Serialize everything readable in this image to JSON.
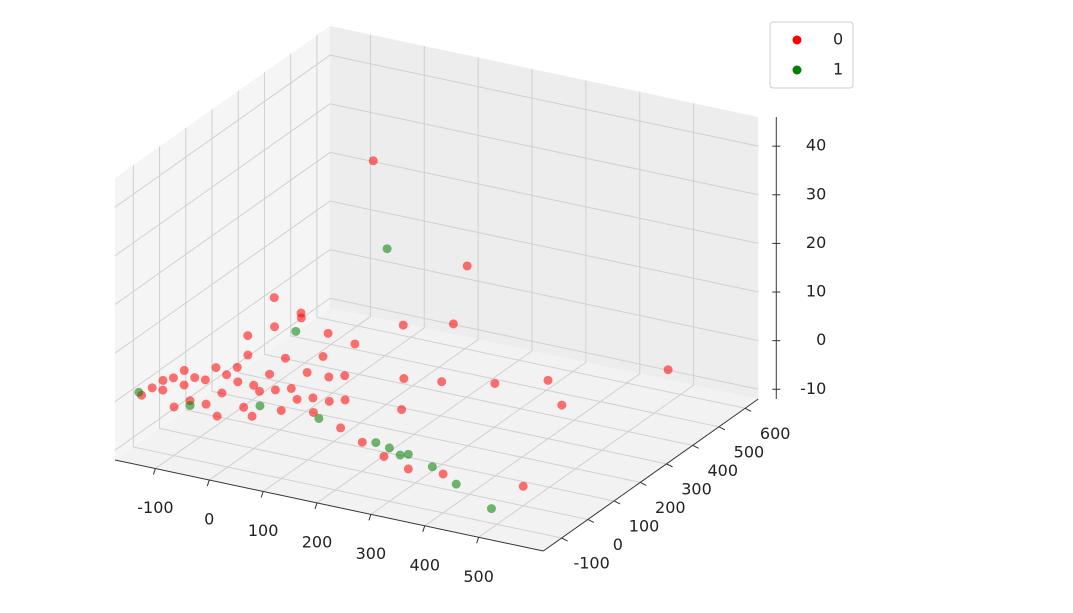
{
  "chart_data": {
    "type": "scatter3d",
    "series": [
      {
        "name": "0",
        "color": "#ff0000",
        "x": [
          -150,
          -140,
          -130,
          -120,
          -110,
          -100,
          -90,
          -80,
          -70,
          -60,
          -50,
          -40,
          -30,
          -20,
          -10,
          0,
          10,
          20,
          30,
          40,
          50,
          60,
          70,
          80,
          90,
          100,
          110,
          120,
          130,
          140,
          150,
          -80,
          -60,
          0,
          60,
          -120,
          -100,
          -60,
          -20,
          20,
          60,
          100,
          -40,
          0,
          200,
          250,
          300,
          350,
          250,
          300,
          350,
          400,
          450,
          500,
          550,
          250,
          100,
          200,
          400,
          180,
          220
        ],
        "y": [
          -120,
          -100,
          -80,
          -60,
          -40,
          -20,
          0,
          20,
          40,
          60,
          80,
          -100,
          -60,
          -20,
          20,
          60,
          100,
          -80,
          -40,
          0,
          40,
          80,
          120,
          -60,
          -20,
          20,
          60,
          100,
          -40,
          0,
          40,
          -140,
          -120,
          -140,
          -130,
          -100,
          -60,
          100,
          120,
          140,
          160,
          180,
          160,
          180,
          -80,
          -100,
          -120,
          -130,
          50,
          100,
          200,
          300,
          250,
          0,
          450,
          300,
          250,
          350,
          -100,
          200,
          120
        ],
        "z": [
          0,
          1,
          0,
          2,
          0,
          1,
          0,
          2,
          0,
          1,
          3,
          0,
          1,
          2,
          0,
          1,
          3,
          0,
          2,
          1,
          0,
          2,
          4,
          0,
          1,
          0,
          3,
          2,
          0,
          1,
          0,
          0,
          1,
          0,
          1,
          3,
          4,
          6,
          8,
          10,
          7,
          5,
          12,
          9,
          0,
          -1,
          -2,
          -3,
          0,
          5,
          2,
          0,
          -2,
          -8,
          0,
          20,
          40,
          5,
          -4,
          10,
          3
        ]
      },
      {
        "name": "1",
        "color": "#008000",
        "x": [
          -160,
          -60,
          0,
          280,
          310,
          330,
          350,
          380,
          400,
          150,
          150,
          60,
          480
        ],
        "y": [
          -110,
          -120,
          160,
          -110,
          -120,
          -120,
          -130,
          -100,
          -50,
          200,
          -60,
          -100,
          -80
        ],
        "z": [
          0,
          0,
          6,
          0,
          0,
          -1,
          0,
          -3,
          -8,
          25,
          0,
          2,
          -10
        ]
      }
    ],
    "xlim": [
      -175,
      620
    ],
    "ylim": [
      -170,
      650
    ],
    "zlim": [
      -12,
      46
    ],
    "xticks": [
      -100,
      0,
      100,
      200,
      300,
      400,
      500
    ],
    "yticks": [
      -100,
      0,
      100,
      200,
      300,
      400,
      500,
      600
    ],
    "zticks": [
      -10,
      0,
      10,
      20,
      30,
      40
    ],
    "grid": true,
    "legend": "upper right"
  }
}
